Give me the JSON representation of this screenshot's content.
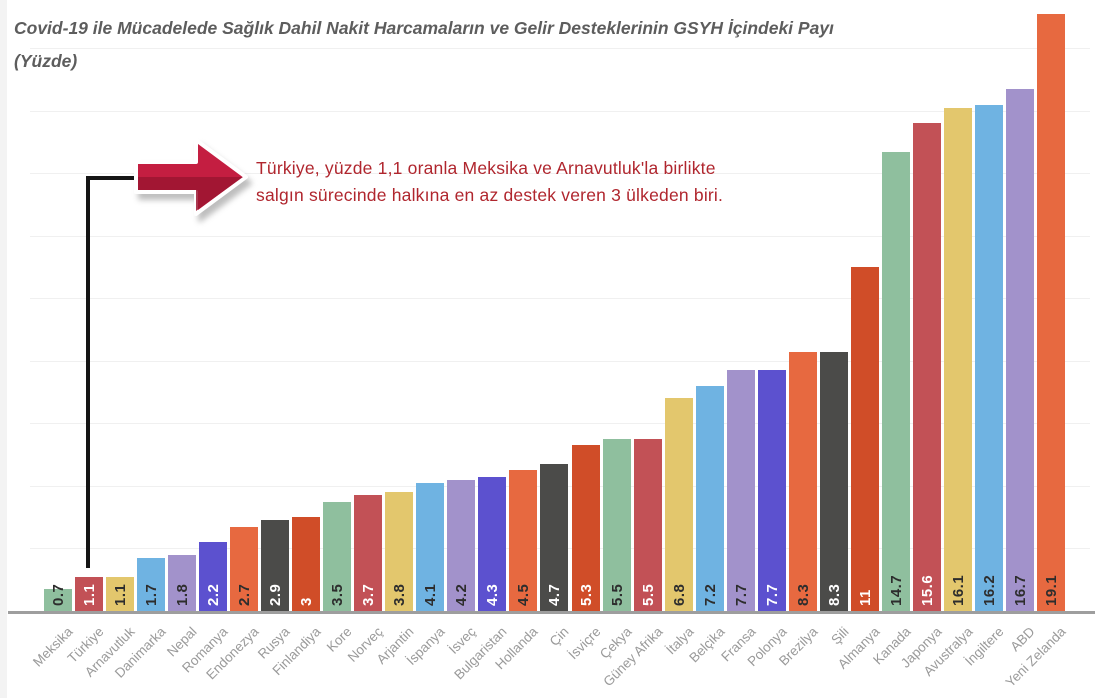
{
  "title": {
    "line1": "Covid-19 ile Mücadelede Sağlık Dahil Nakit Harcamaların ve Gelir Desteklerinin GSYH İçindeki Payı",
    "line2": "(Yüzde)"
  },
  "annotation": {
    "line1": "Türkiye, yüzde 1,1 oranla Meksika ve Arnavutluk'la birlikte",
    "line2": "salgın sürecinde halkına en az destek veren 3 ülkeden biri.",
    "text_color": "#b0262e",
    "arrow_fill": "#c41e41",
    "arrow_shade": "#9c1531",
    "connector_color": "#151515"
  },
  "chart_data": {
    "type": "bar",
    "title": "Covid-19 ile Mücadelede Sağlık Dahil Nakit Harcamaların ve Gelir Desteklerinin GSYH İçindeki Payı (Yüzde)",
    "xlabel": "",
    "ylabel": "",
    "ylim": [
      0,
      19.1
    ],
    "grid": {
      "visible": true,
      "step": 2,
      "max": 18
    },
    "legend": "none",
    "categories": [
      "Meksika",
      "Türkiye",
      "Arnavutluk",
      "Danimarka",
      "Nepal",
      "Romanya",
      "Endonezya",
      "Rusya",
      "Finlandiya",
      "Kore",
      "Norveç",
      "Arjantin",
      "İspanya",
      "İsveç",
      "Bulgaristan",
      "Hollanda",
      "Çin",
      "İsviçre",
      "Çekya",
      "Güney Afrika",
      "İtalya",
      "Belçika",
      "Fransa",
      "Polonya",
      "Brezilya",
      "Şili",
      "Almanya",
      "Kanada",
      "Japonya",
      "Avustralya",
      "İngiltere",
      "ABD",
      "Yeni Zelanda"
    ],
    "values": [
      0.7,
      1.1,
      1.1,
      1.7,
      1.8,
      2.2,
      2.7,
      2.9,
      3,
      3.5,
      3.7,
      3.8,
      4.1,
      4.2,
      4.3,
      4.5,
      4.7,
      5.3,
      5.5,
      5.5,
      6.8,
      7.2,
      7.7,
      7.7,
      8.3,
      8.3,
      11,
      14.7,
      15.6,
      16.1,
      16.2,
      16.7,
      19.1
    ],
    "bar_color_keys": [
      "green",
      "red",
      "yellow",
      "blue",
      "purple",
      "indigo",
      "orange",
      "gray",
      "darkorange",
      "green",
      "red",
      "yellow",
      "blue",
      "purple",
      "indigo",
      "orange",
      "gray",
      "darkorange",
      "green",
      "red",
      "yellow",
      "blue",
      "purple",
      "indigo",
      "orange",
      "gray",
      "darkorange",
      "green",
      "red",
      "yellow",
      "blue",
      "purple",
      "orange"
    ],
    "value_label_tones": [
      "dark",
      "light",
      "dark",
      "dark",
      "dark",
      "light",
      "dark",
      "light",
      "light",
      "dark",
      "light",
      "dark",
      "dark",
      "dark",
      "light",
      "dark",
      "light",
      "light",
      "dark",
      "light",
      "dark",
      "dark",
      "dark",
      "light",
      "dark",
      "light",
      "light",
      "dark",
      "light",
      "dark",
      "dark",
      "dark",
      "dark"
    ]
  },
  "colors": {
    "palette": {
      "green": "#8fbf9e",
      "red": "#c25156",
      "yellow": "#e3c76d",
      "blue": "#6fb3e2",
      "purple": "#a292cb",
      "indigo": "#5c51cf",
      "orange": "#e76940",
      "gray": "#4b4b49",
      "darkorange": "#d04d28"
    },
    "value_label_dark": "#2d2d2d",
    "value_label_light": "#ffffff",
    "axis_line": "#9e9e9e",
    "gridline": "#f0f0f0",
    "category_label": "#9a9a9a",
    "title_text": "#5d5d5d"
  }
}
